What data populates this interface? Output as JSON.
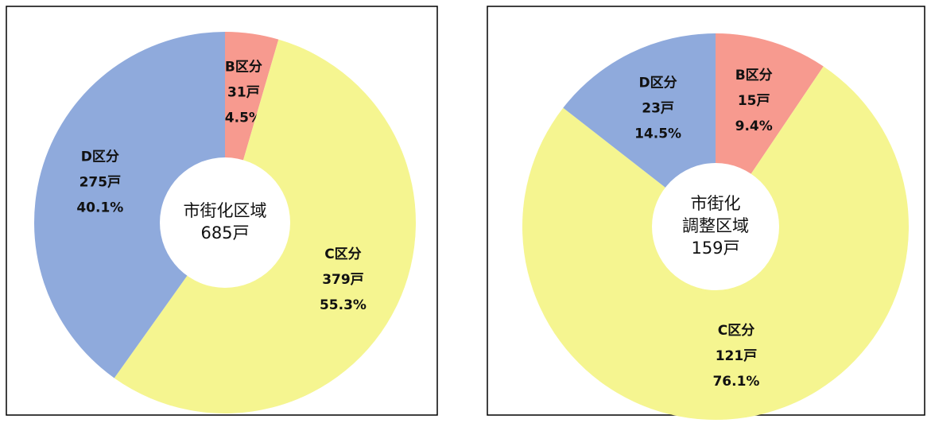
{
  "chart_data": [
    {
      "type": "pie",
      "categories": [
        "B区分",
        "C区分",
        "D区分"
      ],
      "values": [
        31,
        379,
        275
      ],
      "value_labels": [
        "31戸",
        "379戸",
        "275戸"
      ],
      "percent_labels": [
        "4.5%",
        "55.3%",
        "40.1%"
      ],
      "colors": [
        "#f79a8f",
        "#f5f590",
        "#8faadc"
      ],
      "center_label": [
        "市街化区域",
        "685戸"
      ]
    },
    {
      "type": "pie",
      "categories": [
        "B区分",
        "C区分",
        "D区分"
      ],
      "values": [
        15,
        121,
        23
      ],
      "value_labels": [
        "15戸",
        "121戸",
        "23戸"
      ],
      "percent_labels": [
        "9.4%",
        "76.1%",
        "14.5%"
      ],
      "colors": [
        "#f79a8f",
        "#f5f590",
        "#8faadc"
      ],
      "center_label": [
        "市街化",
        "調整区域",
        "159戸"
      ]
    }
  ]
}
